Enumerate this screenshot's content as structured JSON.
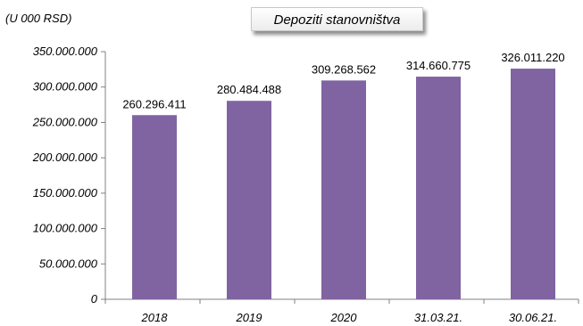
{
  "chart_data": {
    "type": "bar",
    "title": "Depoziti stanovništva",
    "ylabel": "(U 000 RSD)",
    "xlabel": "",
    "categories": [
      "2018",
      "2019",
      "2020",
      "31.03.21.",
      "30.06.21."
    ],
    "values": [
      260296411,
      280484488,
      309268562,
      314660775,
      326011220
    ],
    "value_labels": [
      "260.296.411",
      "280.484.488",
      "309.268.562",
      "314.660.775",
      "326.011.220"
    ],
    "ylim": [
      0,
      350000000
    ],
    "yticks": [
      0,
      50000000,
      100000000,
      150000000,
      200000000,
      250000000,
      300000000,
      350000000
    ],
    "ytick_labels": [
      "0",
      "50.000.000",
      "100.000.000",
      "150.000.000",
      "200.000.000",
      "250.000.000",
      "300.000.000",
      "350.000.000"
    ],
    "grid": false,
    "legend": "none",
    "bar_color": "#8064a2"
  }
}
